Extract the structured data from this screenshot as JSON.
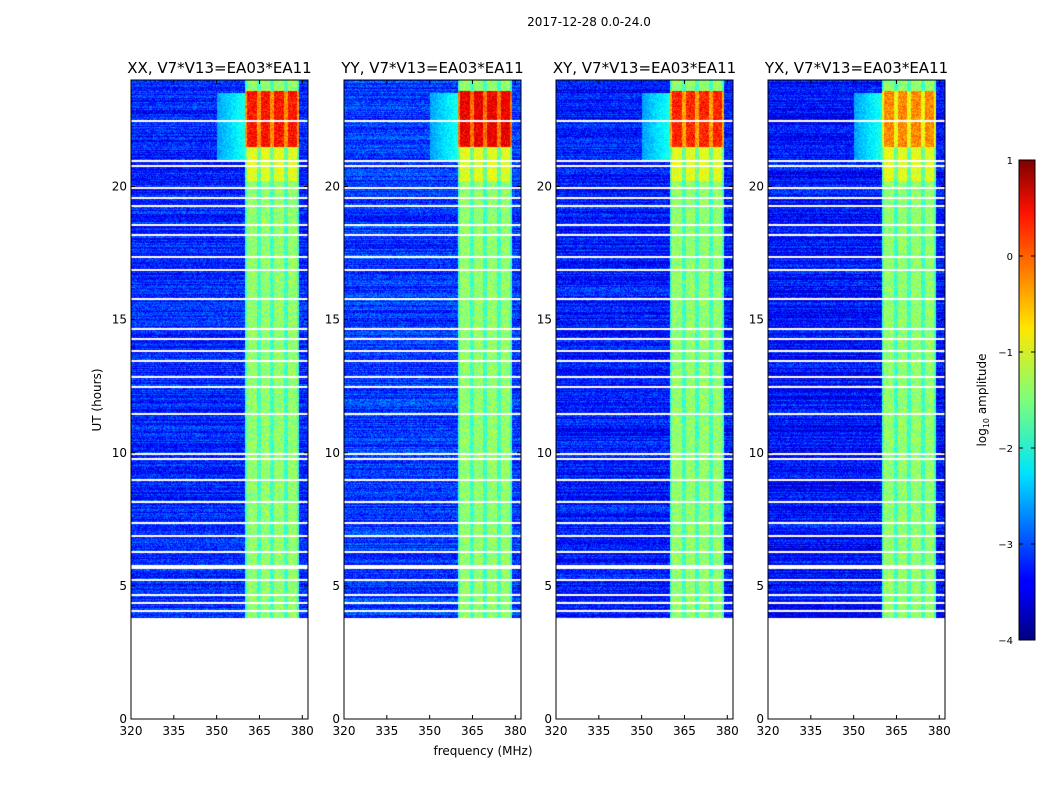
{
  "chart_data": {
    "type": "heatmap",
    "suptitle": "2017-12-28 0.0-24.0",
    "xlabel": "frequency (MHz)",
    "ylabel": "UT (hours)",
    "xlim": [
      320,
      382
    ],
    "ylim": [
      0,
      24
    ],
    "xticks": [
      320,
      335,
      350,
      365,
      380
    ],
    "yticks": [
      0,
      5,
      10,
      15,
      20
    ],
    "panels": [
      {
        "title": "XX, V7*V13=EA03*EA11",
        "background": -3.2,
        "rfi_peak": 0.3
      },
      {
        "title": "YY, V7*V13=EA03*EA11",
        "background": -3.1,
        "rfi_peak": 0.45
      },
      {
        "title": "XY, V7*V13=EA03*EA11",
        "background": -3.25,
        "rfi_peak": 0.2
      },
      {
        "title": "YX, V7*V13=EA03*EA11",
        "background": -3.3,
        "rfi_peak": -0.3
      }
    ],
    "data_start_hour": 3.7,
    "data_end_hour": 24.0,
    "rfi_band_mhz": [
      360,
      379
    ],
    "rfi_strong_hours": [
      20.2,
      23.6
    ],
    "flagged_hours": [
      3.8,
      4.1,
      4.4,
      4.7,
      5.25,
      5.7,
      5.75,
      5.8,
      6.3,
      6.9,
      7.4,
      8.2,
      9.0,
      9.8,
      10.0,
      11.5,
      12.5,
      12.9,
      13.5,
      13.85,
      14.3,
      14.7,
      15.8,
      16.9,
      17.4,
      18.2,
      18.6,
      19.3,
      19.6,
      20.0,
      20.8,
      21.0,
      22.5
    ],
    "colorbar": {
      "label_prefix": "log",
      "label_sub": "10",
      "label_suffix": " amplitude",
      "ticks": [
        {
          "value": 1,
          "label": "1"
        },
        {
          "value": 0,
          "label": "0"
        },
        {
          "value": -1,
          "label": "−1"
        },
        {
          "value": -2,
          "label": "−2"
        },
        {
          "value": -3,
          "label": "−3"
        },
        {
          "value": -4,
          "label": "−4"
        }
      ],
      "range": [
        -4,
        1
      ],
      "colormap": "jet"
    }
  }
}
